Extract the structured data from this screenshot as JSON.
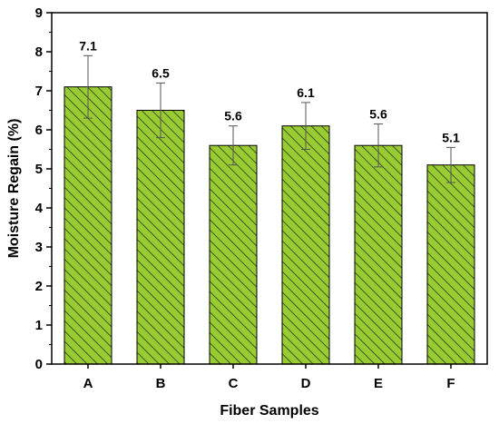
{
  "chart_data": {
    "type": "bar",
    "categories": [
      "A",
      "B",
      "C",
      "D",
      "E",
      "F"
    ],
    "values": [
      7.1,
      6.5,
      5.6,
      6.1,
      5.6,
      5.1
    ],
    "error": [
      0.8,
      0.7,
      0.5,
      0.6,
      0.55,
      0.45
    ],
    "data_labels": [
      "7.1",
      "6.5",
      "5.6",
      "6.1",
      "5.6",
      "5.1"
    ],
    "title": "",
    "xlabel": "Fiber Samples",
    "ylabel": "Moisture Regain (%)",
    "ylim": [
      0,
      9
    ],
    "yticks": [
      0,
      1,
      2,
      3,
      4,
      5,
      6,
      7,
      8,
      9
    ],
    "grid": false,
    "legend": "none",
    "bar_color": "#99cc33",
    "hatch_color": "#2d3a12",
    "edge_color": "#000000"
  }
}
